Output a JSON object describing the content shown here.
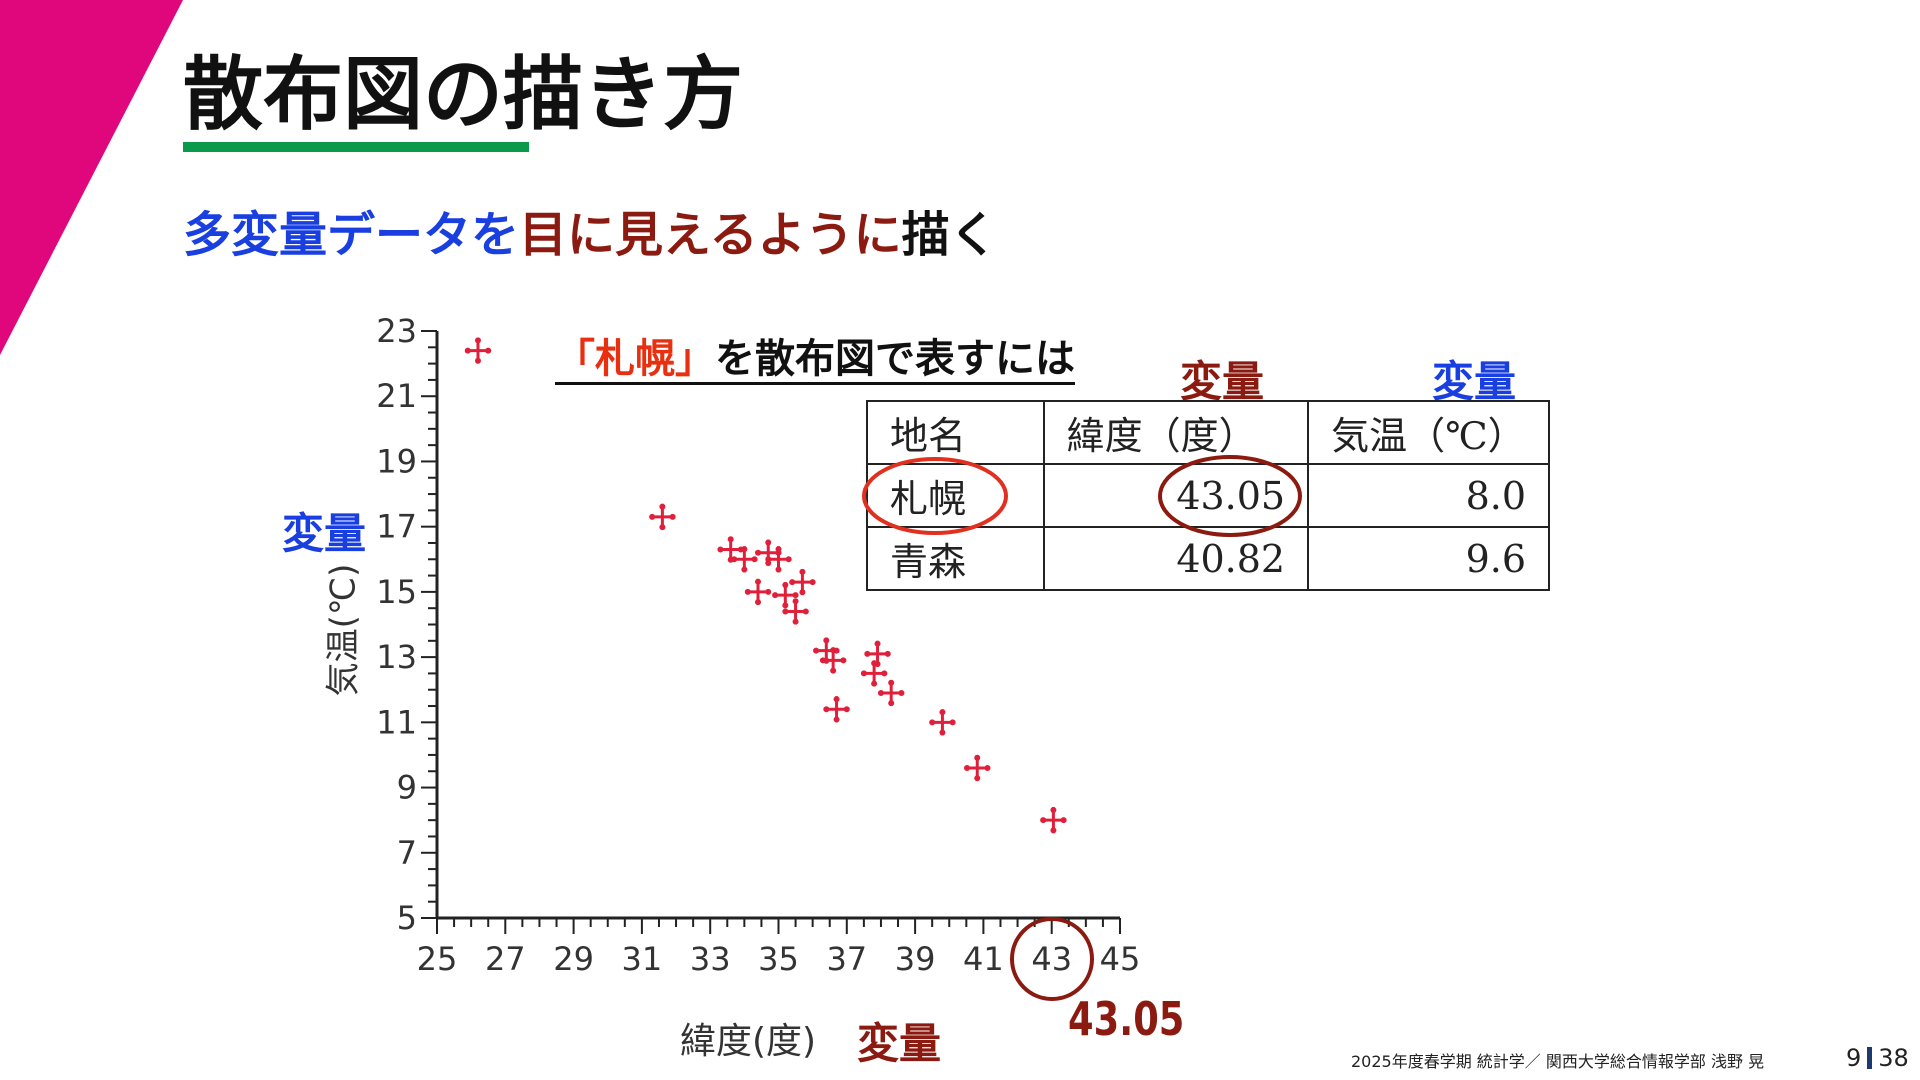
{
  "slide": {
    "title": "散布図の描き方",
    "subtitle": {
      "part1": "多変量データを",
      "part2": "目に見えるように",
      "part3": "描く"
    },
    "colors": {
      "accent_magenta": "#e0077d",
      "underline_green": "#0a9a4a",
      "blue": "#1a3fe0",
      "dark_red": "#8b1a10",
      "orange_red": "#e83010",
      "marker_red": "#e0203a"
    },
    "footer": "2025年度春学期  統計学／  関西大学総合情報学部  浅野  晃",
    "page": {
      "current": "9",
      "total": "38"
    }
  },
  "annotations": {
    "heading_highlight": "「札幌」",
    "heading_rest": "を散布図で表すには",
    "var_label": "変量",
    "highlight_value": "43.05"
  },
  "table": {
    "headers": [
      "地名",
      "緯度（度）",
      "気温（℃）"
    ],
    "rows": [
      [
        "札幌",
        "43.05",
        "8.0"
      ],
      [
        "青森",
        "40.82",
        "9.6"
      ]
    ]
  },
  "chart_data": {
    "type": "scatter",
    "xlabel": "緯度(度)",
    "ylabel": "気温(℃)",
    "xlim": [
      25,
      45
    ],
    "ylim": [
      5,
      23
    ],
    "xticks": [
      "25",
      "27",
      "29",
      "31",
      "33",
      "35",
      "37",
      "39",
      "41",
      "43",
      "45"
    ],
    "yticks": [
      "5",
      "7",
      "9",
      "11",
      "13",
      "15",
      "17",
      "19",
      "21",
      "23"
    ],
    "grid": false,
    "marker": "cross",
    "points": [
      [
        26.2,
        22.4
      ],
      [
        31.6,
        17.3
      ],
      [
        33.6,
        16.3
      ],
      [
        34.0,
        16.0
      ],
      [
        34.7,
        16.2
      ],
      [
        35.0,
        16.0
      ],
      [
        34.4,
        15.0
      ],
      [
        35.2,
        14.9
      ],
      [
        35.7,
        15.3
      ],
      [
        35.5,
        14.4
      ],
      [
        36.4,
        13.2
      ],
      [
        36.6,
        12.9
      ],
      [
        37.9,
        13.1
      ],
      [
        37.8,
        12.5
      ],
      [
        38.3,
        11.9
      ],
      [
        36.7,
        11.4
      ],
      [
        39.8,
        11.0
      ],
      [
        40.82,
        9.6
      ],
      [
        43.05,
        8.0
      ]
    ]
  }
}
